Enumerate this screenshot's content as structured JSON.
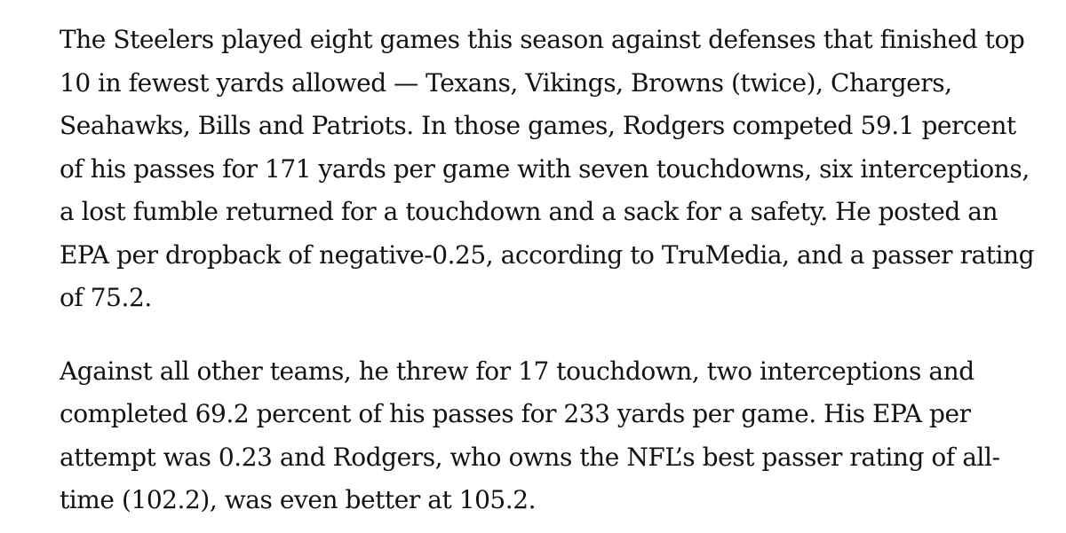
{
  "article": {
    "paragraphs": [
      "The Steelers played eight games this season against defenses that finished top 10 in fewest yards allowed — Texans, Vikings, Browns (twice), Chargers, Seahawks, Bills and Patriots. In those games, Rodgers competed 59.1 percent of his passes for 171 yards per game with seven touchdowns, six interceptions, a lost fumble returned for a touchdown and a sack for a safety. He posted an EPA per dropback of negative-0.25, according to TruMedia, and a passer rating of 75.2.",
      "Against all other teams, he threw for 17 touchdown, two interceptions and completed 69.2 percent of his passes for 233 yards per game. His EPA per attempt was 0.23 and Rodgers, who owns the NFL’s best passer rating of all-time (102.2), was even better at 105.2."
    ]
  }
}
